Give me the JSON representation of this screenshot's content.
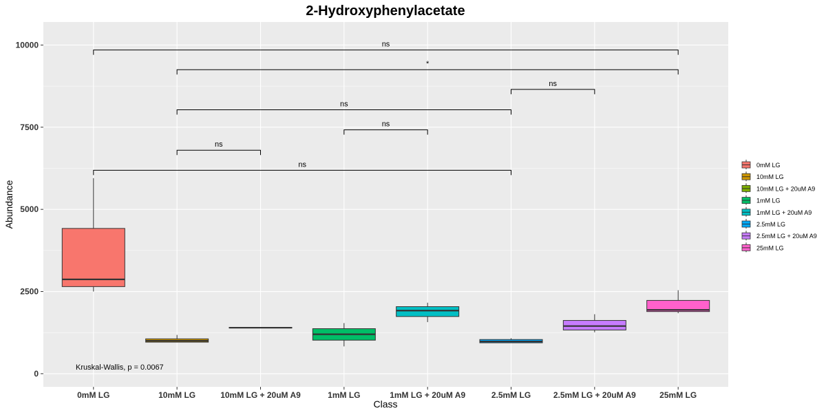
{
  "chart_data": {
    "type": "box",
    "title": "2-Hydroxyphenylacetate",
    "xlabel": "Class",
    "ylabel": "Abundance",
    "ylim": [
      -400,
      10700
    ],
    "yticks": [
      0,
      2500,
      5000,
      7500,
      10000
    ],
    "categories": [
      "0mM LG",
      "10mM LG",
      "10mM LG + 20uM A9",
      "1mM LG",
      "1mM LG + 20uM A9",
      "2.5mM LG",
      "2.5mM LG + 20uM A9",
      "25mM LG"
    ],
    "colors": [
      "#F8766D",
      "#CD9600",
      "#7CAE00",
      "#00BE67",
      "#00BFC4",
      "#00A9FF",
      "#C77CFF",
      "#FF61CC"
    ],
    "boxes": [
      {
        "min": 2500,
        "q1": 2650,
        "median": 2870,
        "q3": 4420,
        "max": 5950
      },
      {
        "min": 960,
        "q1": 960,
        "median": 1000,
        "q3": 1060,
        "max": 1180
      },
      {
        "min": 1390,
        "q1": 1390,
        "median": 1400,
        "q3": 1410,
        "max": 1410
      },
      {
        "min": 830,
        "q1": 1020,
        "median": 1200,
        "q3": 1370,
        "max": 1540
      },
      {
        "min": 1570,
        "q1": 1740,
        "median": 1920,
        "q3": 2040,
        "max": 2160
      },
      {
        "min": 940,
        "q1": 940,
        "median": 980,
        "q3": 1040,
        "max": 1080
      },
      {
        "min": 1260,
        "q1": 1330,
        "median": 1450,
        "q3": 1620,
        "max": 1810
      },
      {
        "min": 1840,
        "q1": 1890,
        "median": 1940,
        "q3": 2230,
        "max": 2540
      }
    ],
    "comparisons": [
      {
        "from": 0,
        "to": 7,
        "y": 9850,
        "label": "ns"
      },
      {
        "from": 1,
        "to": 7,
        "y": 9250,
        "label": "*"
      },
      {
        "from": 5,
        "to": 6,
        "y": 8650,
        "label": "ns"
      },
      {
        "from": 1,
        "to": 5,
        "y": 8030,
        "label": "ns"
      },
      {
        "from": 3,
        "to": 4,
        "y": 7420,
        "label": "ns"
      },
      {
        "from": 1,
        "to": 2,
        "y": 6800,
        "label": "ns"
      },
      {
        "from": 0,
        "to": 5,
        "y": 6190,
        "label": "ns"
      }
    ],
    "annotation": "Kruskal-Wallis, p = 0.0067",
    "legend": {
      "position": "right",
      "entries": [
        "0mM LG",
        "10mM LG",
        "10mM LG + 20uM A9",
        "1mM LG",
        "1mM LG + 20uM A9",
        "2.5mM LG",
        "2.5mM LG + 20uM A9",
        "25mM LG"
      ]
    },
    "grid": true,
    "panel_background": "#EBEBEB"
  }
}
